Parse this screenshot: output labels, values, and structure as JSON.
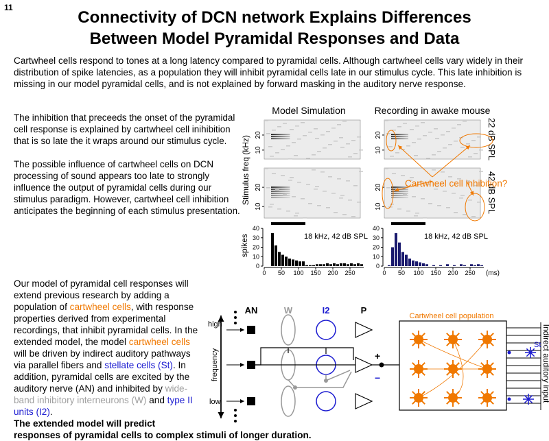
{
  "page_number": "11",
  "title": [
    "Connectivity of DCN network Explains Differences",
    "Between Model Pyramidal Responses and Data"
  ],
  "intro": "Cartwheel cells respond to tones at a long latency compared to pyramidal cells.  Although cartwheel cells vary widely in their distribution of spike latencies, as a population they will inhibit pyramidal cells late in our stimulus cycle. This late inhibition is missing in our model pyramidal cells, and is not explained by forward masking in the auditory nerve response.",
  "left_text": [
    "The inhibition that preceeds the onset of the pyramidal cell response is explained by cartwheel cell inihibition that is so late the it wraps around our stimulus cycle.",
    "The possible influence of cartwheel cells on DCN processing of sound appears too late to strongly influence the output of pyramidal cells during our stimulus paradigm. However, cartwheel cell inhibition anticipates the beginning of each stimulus presentation."
  ],
  "figure": {
    "columns": [
      "Model Simulation",
      "Recording in awake mouse"
    ],
    "levels": [
      "22 dB SPL",
      "42 dB SPL"
    ],
    "spectrogram": {
      "ylabel": "Stimulus freq (kHz)",
      "ylim": [
        4,
        30
      ],
      "yticks": [
        10,
        20
      ]
    },
    "annotation": "Cartwheel cell inhibition?",
    "histogram": {
      "ylabel": "spikes",
      "xunit": "(ms)",
      "xlim": [
        0,
        290
      ],
      "ylim": [
        0,
        40
      ],
      "xticks": [
        0,
        50,
        100,
        150,
        200,
        250
      ],
      "yticks": [
        0,
        10,
        20,
        30,
        40
      ],
      "stimulus_ms": [
        20,
        120
      ],
      "panels": [
        {
          "label": "18 kHz, 42 dB SPL",
          "color": "#000000",
          "values": [
            0,
            0,
            35,
            22,
            15,
            12,
            10,
            8,
            7,
            6,
            5,
            5,
            1,
            1,
            1,
            2,
            2,
            2,
            3,
            2,
            3,
            2,
            3,
            3,
            2,
            3,
            2,
            3,
            2
          ]
        },
        {
          "label": "18 kHz, 42 dB SPL",
          "color": "#1a1a6e",
          "values": [
            0,
            1,
            20,
            35,
            25,
            15,
            12,
            8,
            6,
            5,
            4,
            3,
            2,
            0,
            1,
            0,
            1,
            0,
            2,
            0,
            1,
            0,
            2,
            1,
            0,
            2,
            1,
            2,
            1
          ]
        }
      ]
    }
  },
  "paragraph": [
    {
      "text": "Our model of pyramidal cell responses will extend previous research by adding a population of "
    },
    {
      "text": "cartwheel cells",
      "color": "#f07800"
    },
    {
      "text": ", with response properties derived from experimental recordings, that inhibit pyramidal cells. In the extended model, the model "
    },
    {
      "text": "cartwheel cells",
      "color": "#f07800"
    },
    {
      "text": " will be driven by indirect auditory pathways via parallel fibers and "
    },
    {
      "text": "stellate cells (St)",
      "color": "#1a1ad0"
    },
    {
      "text": ". In addition, pyramidal cells are excited by the auditory nerve (AN) and inhibited by "
    },
    {
      "text": "wide-band inhibitory interneurons (W)",
      "color": "#a0a0a0"
    },
    {
      "text": " and "
    },
    {
      "text": "type II units (I2)",
      "color": "#1a1ad0"
    },
    {
      "text": "."
    }
  ],
  "conclusion": "The extended model will predict responses  of pyramidal cells to complex stimuli of longer duration.",
  "diagram": {
    "columns": [
      "AN",
      "W",
      "I2",
      "P"
    ],
    "high": "high",
    "low": "low",
    "axis": "frequency",
    "plus": "+",
    "minus": "−",
    "population": "Cartwheel cell population",
    "input": "Indirect auditory input",
    "stellate": "St"
  }
}
